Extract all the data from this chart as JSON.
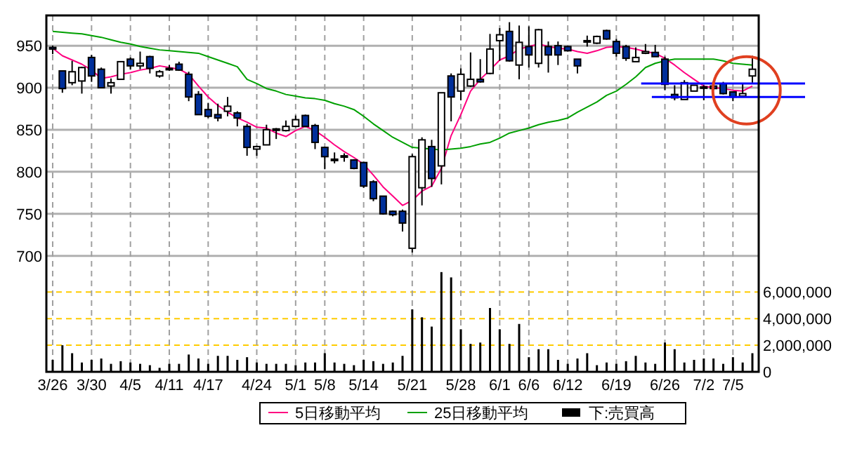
{
  "chart_data": {
    "type": "candlestick",
    "categories": [
      "3/26",
      null,
      null,
      null,
      "3/30",
      null,
      null,
      null,
      "4/5",
      null,
      null,
      null,
      "4/11",
      null,
      null,
      null,
      "4/17",
      null,
      null,
      null,
      null,
      "4/24",
      null,
      null,
      null,
      "5/1",
      null,
      null,
      "5/8",
      null,
      null,
      null,
      "5/14",
      null,
      null,
      null,
      null,
      "5/21",
      null,
      null,
      null,
      null,
      "5/28",
      null,
      null,
      null,
      "6/1",
      null,
      null,
      "6/6",
      null,
      null,
      null,
      "6/12",
      null,
      null,
      null,
      null,
      "6/19",
      null,
      null,
      null,
      null,
      "6/26",
      null,
      null,
      null,
      "7/2",
      null,
      null,
      "7/5",
      null,
      null
    ],
    "ohlc": [
      [
        948,
        950,
        940,
        946
      ],
      [
        920,
        920,
        894,
        899
      ],
      [
        906,
        932,
        903,
        919
      ],
      [
        908,
        925,
        893,
        924
      ],
      [
        936,
        939,
        907,
        914
      ],
      [
        922,
        924,
        900,
        900
      ],
      [
        902,
        911,
        893,
        906
      ],
      [
        910,
        931,
        910,
        931
      ],
      [
        934,
        936,
        922,
        926
      ],
      [
        926,
        943,
        922,
        929
      ],
      [
        937,
        938,
        917,
        923
      ],
      [
        914,
        921,
        912,
        919
      ],
      [
        923,
        927,
        920,
        922
      ],
      [
        928,
        931,
        920,
        921
      ],
      [
        916,
        919,
        884,
        889
      ],
      [
        892,
        896,
        868,
        868
      ],
      [
        874,
        882,
        864,
        866
      ],
      [
        868,
        881,
        860,
        864
      ],
      [
        872,
        889,
        866,
        878
      ],
      [
        870,
        872,
        854,
        864
      ],
      [
        854,
        857,
        819,
        829
      ],
      [
        827,
        831,
        819,
        830
      ],
      [
        832,
        856,
        832,
        850
      ],
      [
        850,
        852,
        839,
        851
      ],
      [
        849,
        861,
        848,
        854
      ],
      [
        854,
        867,
        853,
        862
      ],
      [
        867,
        868,
        853,
        854
      ],
      [
        855,
        857,
        827,
        835
      ],
      [
        829,
        830,
        803,
        818
      ],
      [
        815,
        823,
        810,
        814
      ],
      [
        818,
        822,
        812,
        819
      ],
      [
        814,
        815,
        803,
        804
      ],
      [
        811,
        812,
        781,
        783
      ],
      [
        788,
        790,
        765,
        768
      ],
      [
        771,
        771,
        749,
        750
      ],
      [
        753,
        754,
        747,
        749
      ],
      [
        753,
        755,
        729,
        739
      ],
      [
        709,
        821,
        704,
        818
      ],
      [
        781,
        841,
        760,
        838
      ],
      [
        830,
        838,
        782,
        792
      ],
      [
        807,
        894,
        785,
        894
      ],
      [
        914,
        917,
        860,
        889
      ],
      [
        896,
        923,
        885,
        916
      ],
      [
        902,
        942,
        901,
        910
      ],
      [
        910,
        934,
        906,
        907
      ],
      [
        917,
        964,
        916,
        946
      ],
      [
        956,
        971,
        932,
        963
      ],
      [
        967,
        978,
        931,
        932
      ],
      [
        927,
        974,
        910,
        954
      ],
      [
        949,
        973,
        924,
        939
      ],
      [
        929,
        970,
        924,
        969
      ],
      [
        949,
        955,
        918,
        939
      ],
      [
        950,
        955,
        927,
        939
      ],
      [
        949,
        950,
        943,
        944
      ],
      [
        934,
        934,
        917,
        926
      ],
      [
        956,
        962,
        949,
        955
      ],
      [
        953,
        962,
        952,
        961
      ],
      [
        968,
        969,
        957,
        958
      ],
      [
        955,
        958,
        937,
        941
      ],
      [
        949,
        951,
        932,
        935
      ],
      [
        931,
        948,
        931,
        936
      ],
      [
        941,
        952,
        940,
        943
      ],
      [
        942,
        951,
        937,
        937
      ],
      [
        934,
        937,
        897,
        904
      ],
      [
        892,
        903,
        885,
        888
      ],
      [
        886,
        909,
        886,
        906
      ],
      [
        896,
        903,
        896,
        903
      ],
      [
        901,
        903,
        885,
        900
      ],
      [
        902,
        904,
        897,
        899
      ],
      [
        905,
        907,
        892,
        893
      ],
      [
        895,
        895,
        884,
        889
      ],
      [
        890,
        905,
        890,
        893
      ],
      [
        914,
        938,
        906,
        922
      ]
    ],
    "series": [
      {
        "name": "5日移動平均",
        "type": "line",
        "color": "#ff0080",
        "values": [
          947,
          938,
          933,
          928,
          921,
          911,
          913,
          916,
          918,
          921,
          923,
          926,
          924,
          922,
          916,
          902,
          889,
          879,
          871,
          864,
          859,
          853,
          852,
          846,
          842,
          849,
          854,
          849,
          841,
          832,
          824,
          817,
          809,
          796,
          782,
          771,
          760,
          766,
          777,
          783,
          804,
          843,
          868,
          896,
          910,
          921,
          933,
          938,
          946,
          949,
          952,
          949,
          947,
          946,
          943,
          941,
          944,
          948,
          949,
          948,
          946,
          943,
          941,
          935,
          927,
          918,
          910,
          902,
          900,
          899,
          897,
          896,
          902
        ]
      },
      {
        "name": "25日移動平均",
        "type": "line",
        "color": "#00a000",
        "values": [
          967,
          966,
          965,
          964,
          962,
          960,
          957,
          954,
          952,
          949,
          947,
          945,
          944,
          943,
          942,
          941,
          937,
          933,
          929,
          925,
          910,
          905,
          899,
          896,
          892,
          890,
          888,
          887,
          885,
          881,
          878,
          874,
          866,
          857,
          849,
          841,
          835,
          829,
          828,
          827,
          826,
          827,
          828,
          830,
          833,
          835,
          840,
          846,
          849,
          852,
          856,
          859,
          861,
          864,
          871,
          877,
          883,
          891,
          896,
          904,
          913,
          924,
          929,
          932,
          934,
          934,
          934,
          934,
          934,
          932,
          929,
          928,
          927
        ]
      },
      {
        "name": "下:売買高",
        "type": "bar",
        "axis": "y2",
        "color": "#000000",
        "values": [
          900000,
          2000000,
          1400000,
          700000,
          900000,
          1000000,
          600000,
          800000,
          700000,
          600000,
          500000,
          300000,
          600000,
          600000,
          1300000,
          1000000,
          600000,
          1200000,
          1200000,
          900000,
          1100000,
          700000,
          600000,
          600000,
          600000,
          500000,
          700000,
          700000,
          1400000,
          700000,
          600000,
          500000,
          900000,
          800000,
          600000,
          700000,
          1200000,
          4700000,
          4100000,
          3400000,
          7500000,
          7100000,
          3200000,
          2100000,
          2200000,
          4800000,
          3200000,
          2100000,
          3600000,
          1100000,
          1700000,
          1700000,
          900000,
          600000,
          1000000,
          1400000,
          500000,
          700000,
          600000,
          800000,
          1200000,
          700000,
          600000,
          2200000,
          1700000,
          700000,
          900000,
          1000000,
          1000000,
          600000,
          1100000,
          700000,
          1400000
        ]
      }
    ],
    "ylim": [
      562,
      986
    ],
    "yticks": [
      700,
      750,
      800,
      850,
      900,
      950
    ],
    "y2lim": [
      0,
      26800000
    ],
    "y2ticks": [
      0,
      {
        "value": 2000000,
        "label": "2,000,000"
      },
      {
        "value": 4000000,
        "label": "4,000,000"
      },
      {
        "value": 6000000,
        "label": "6,000,000"
      }
    ],
    "ref_lines": [
      {
        "axis": "y",
        "value": 905,
        "color": "#0000ff"
      },
      {
        "axis": "y",
        "value": 889,
        "color": "#0000ff"
      }
    ],
    "grid": true,
    "legend": "bottom"
  }
}
